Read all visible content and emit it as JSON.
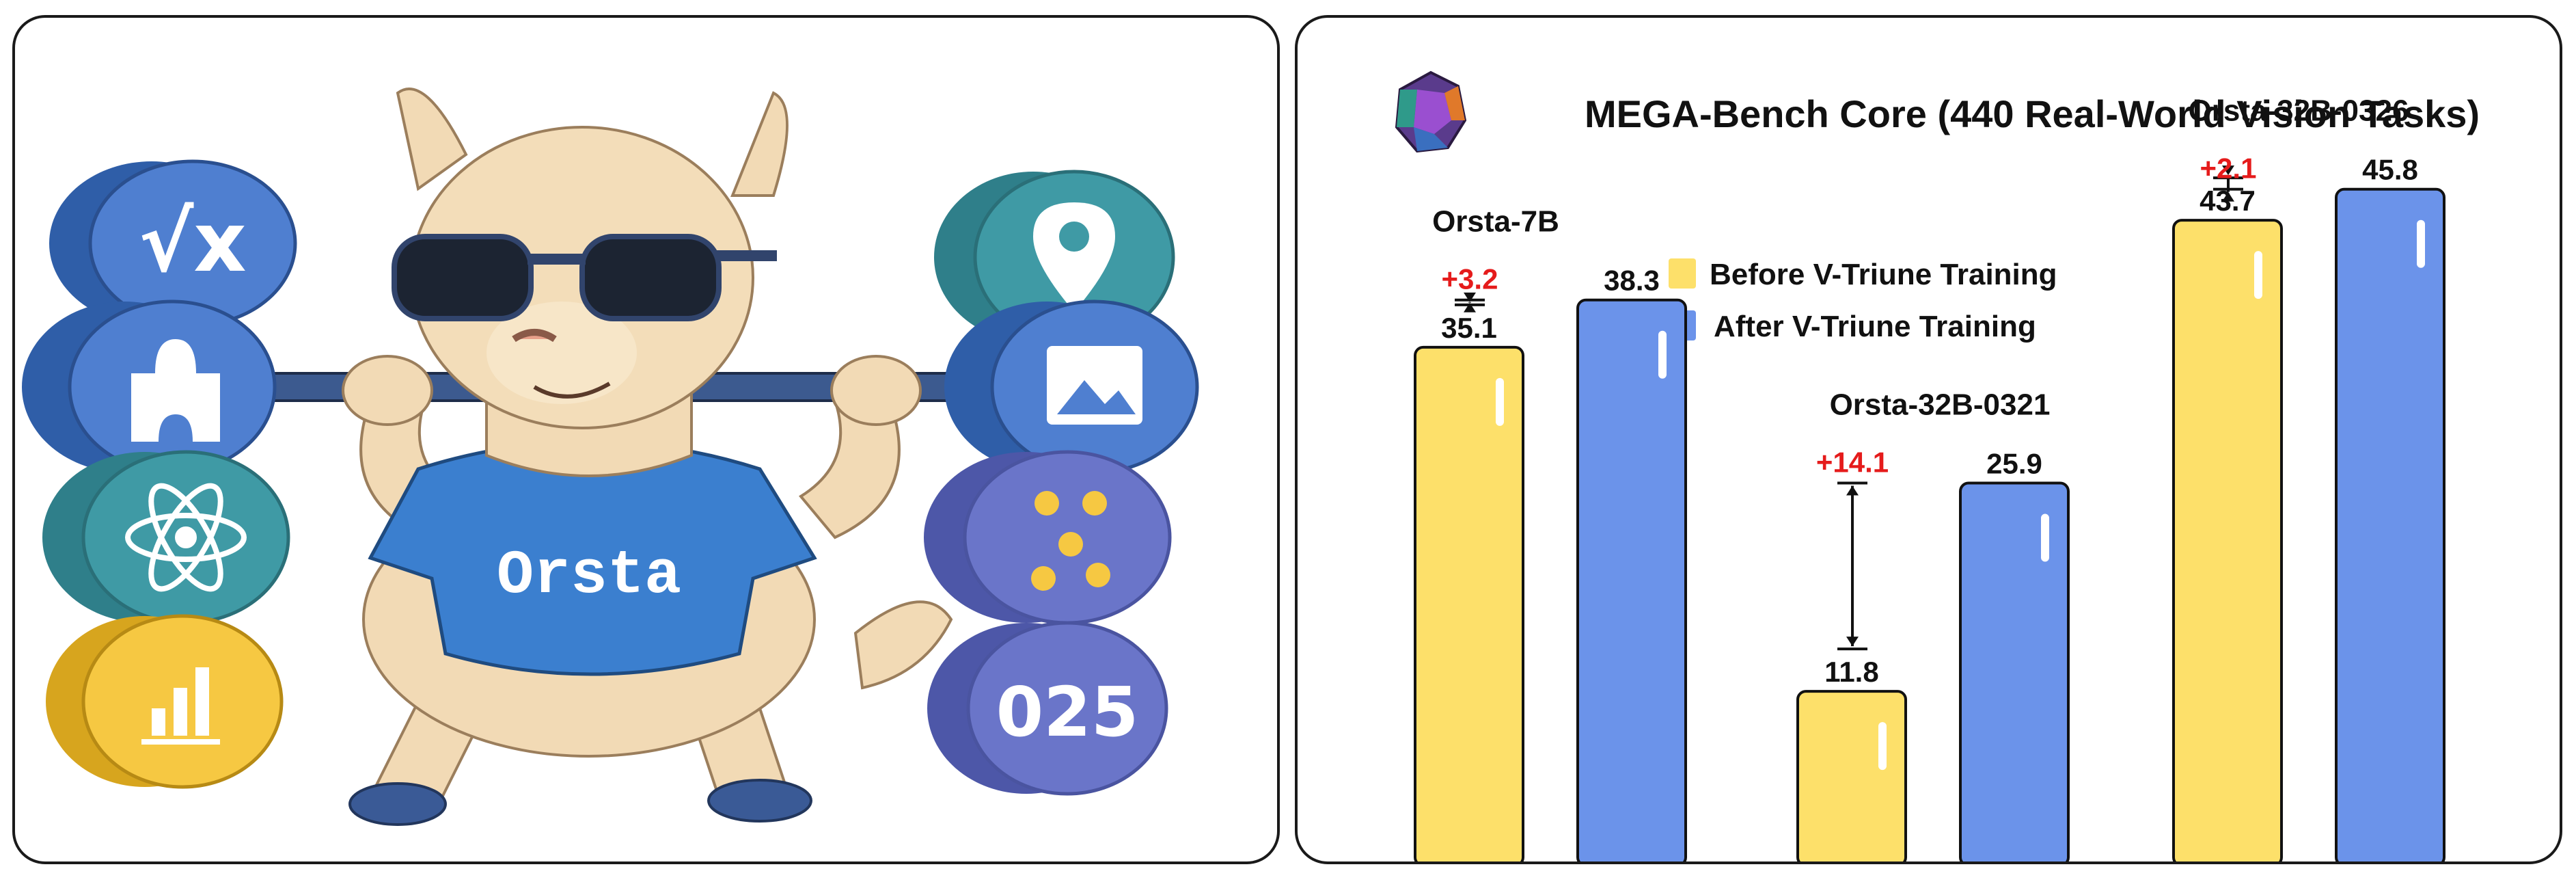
{
  "illustration": {
    "shirt_text": "Orsta",
    "coin_digits": "025",
    "icons": [
      "sqrt-x-icon",
      "puzzle-icon",
      "atom-icon",
      "bar-chart-icon",
      "map-pin-icon",
      "image-icon",
      "dots-icon"
    ]
  },
  "colors": {
    "before": "#fde06a",
    "after": "#6b93ea",
    "delta": "#e51b1b",
    "coin_blue": "#4f7fd0",
    "coin_teal": "#3f9aa5",
    "coin_yellow": "#f6c842",
    "coin_purple": "#6a75c9"
  },
  "chart_data": {
    "type": "bar",
    "title": "MEGA-Bench Core (440 Real-World Vision Tasks)",
    "xlabel": "",
    "ylabel": "",
    "ylim": [
      0,
      50
    ],
    "legend_position": "top-center",
    "categories": [
      "Orsta-7B",
      "Orsta-32B-0321",
      "Orsta-32B-0326"
    ],
    "series": [
      {
        "name": "Before V-Triune Training",
        "values": [
          35.1,
          11.8,
          43.7
        ]
      },
      {
        "name": "After V-Triune Training",
        "values": [
          38.3,
          25.9,
          45.8
        ]
      }
    ],
    "value_labels": {
      "before": [
        "35.1",
        "11.8",
        "43.7"
      ],
      "after": [
        "38.3",
        "25.9",
        "45.8"
      ]
    },
    "deltas": [
      "+3.2",
      "+14.1",
      "+2.1"
    ]
  }
}
